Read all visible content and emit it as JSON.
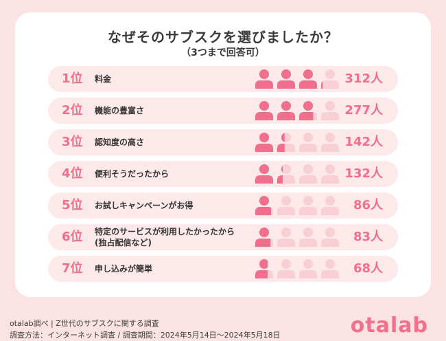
{
  "title": "なぜそのサブスクを選びましたか？",
  "subtitle": "（3つまで回答可）",
  "chart_data": {
    "type": "bar",
    "title": "なぜそのサブスクを選びましたか？",
    "subtitle": "（3つまで回答可）",
    "unit": "人",
    "icons_per_row": 4,
    "icon_unit": 100,
    "colors": {
      "filled": "#ef6f8c",
      "empty": "#f9cfd6",
      "row_bg": "#fde9e9"
    },
    "rows": [
      {
        "rank": "1位",
        "label": [
          "料金"
        ],
        "value": 312,
        "value_label": "312人"
      },
      {
        "rank": "2位",
        "label": [
          "機能の豊富さ"
        ],
        "value": 277,
        "value_label": "277人"
      },
      {
        "rank": "3位",
        "label": [
          "認知度の高さ"
        ],
        "value": 142,
        "value_label": "142人"
      },
      {
        "rank": "4位",
        "label": [
          "便利そうだったから"
        ],
        "value": 132,
        "value_label": "132人"
      },
      {
        "rank": "5位",
        "label": [
          "お試しキャンペーンがお得"
        ],
        "value": 86,
        "value_label": "86人"
      },
      {
        "rank": "6位",
        "label": [
          "特定のサービスが利用したかったから",
          "(独占配信など)"
        ],
        "value": 83,
        "value_label": "83人"
      },
      {
        "rank": "7位",
        "label": [
          "申し込みが簡単"
        ],
        "value": 68,
        "value_label": "68人"
      }
    ]
  },
  "footer": {
    "line1": "otalab調べ | Z世代のサブスクに関する調査",
    "line2": "調査方法：インターネット調査 / 調査期間：2024年5月14日〜2024年5月18日"
  },
  "logo": "otalab"
}
